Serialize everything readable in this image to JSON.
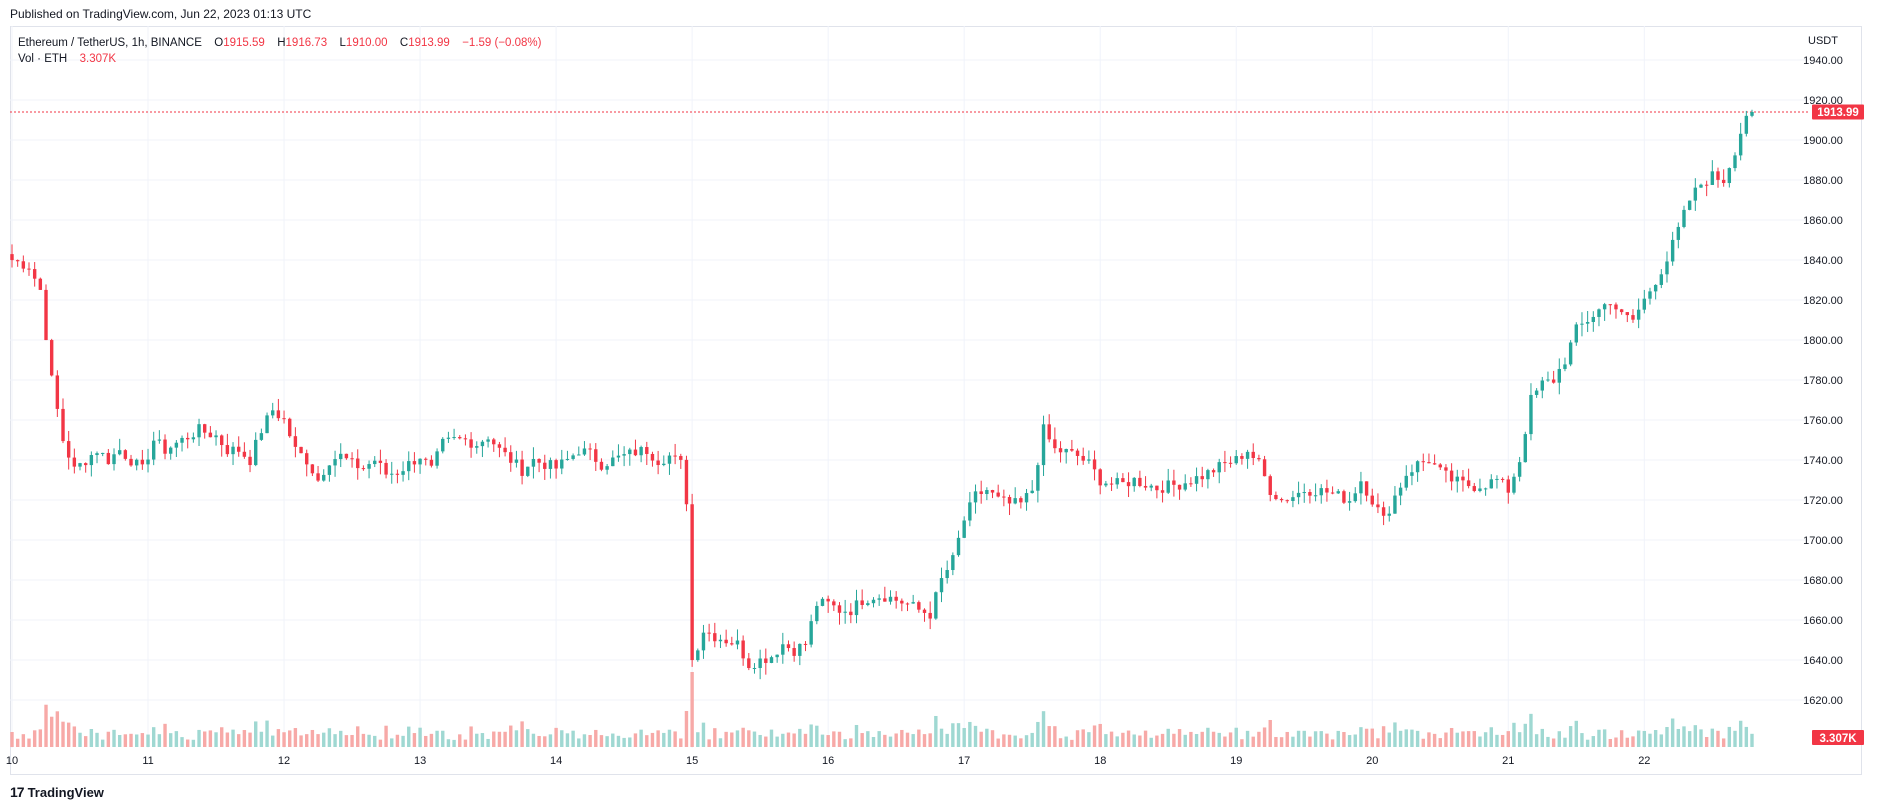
{
  "header": {
    "published": "Published on TradingView.com, Jun 22, 2023 01:13 UTC"
  },
  "legend": {
    "symbol": "Ethereum / TetherUS, 1h, BINANCE",
    "open_label": "O",
    "open": "1915.59",
    "high_label": "H",
    "high": "1916.73",
    "low_label": "L",
    "low": "1910.00",
    "close_label": "C",
    "close": "1913.99",
    "change": "−1.59 (−0.08%)",
    "volume_label": "Vol · ETH",
    "volume": "3.307K"
  },
  "axis": {
    "currency": "USDT",
    "last_price_tag": "1913.99",
    "volume_tag": "3.307K"
  },
  "colors": {
    "up": "#26a69a",
    "down": "#f23645",
    "up_vol": "#9fd8d2",
    "down_vol": "#f7a9a7",
    "grid": "#f0f3fa",
    "price_line": "#f23645"
  },
  "footer": {
    "logo_mark": "17",
    "logo_text": "TradingView"
  },
  "chart_data": {
    "type": "candlestick",
    "title": "Ethereum / TetherUS, 1h, BINANCE",
    "ylabel": "USDT",
    "ylim": [
      1620,
      1940
    ],
    "y_ticks": [
      "1940.00",
      "1920.00",
      "1900.00",
      "1880.00",
      "1860.00",
      "1840.00",
      "1820.00",
      "1800.00",
      "1780.00",
      "1760.00",
      "1740.00",
      "1720.00",
      "1700.00",
      "1680.00",
      "1660.00",
      "1640.00",
      "1620.00"
    ],
    "x_ticks": [
      "10",
      "11",
      "12",
      "13",
      "14",
      "15",
      "16",
      "17",
      "18",
      "19",
      "20",
      "21",
      "22"
    ],
    "close_path": [
      [
        0,
        1840
      ],
      [
        3,
        1837
      ],
      [
        5,
        1825
      ],
      [
        7,
        1780
      ],
      [
        9,
        1750
      ],
      [
        11,
        1735
      ],
      [
        13,
        1740
      ],
      [
        15,
        1745
      ],
      [
        17,
        1740
      ],
      [
        19,
        1745
      ],
      [
        21,
        1740
      ],
      [
        23,
        1735
      ],
      [
        25,
        1750
      ],
      [
        27,
        1745
      ],
      [
        30,
        1750
      ],
      [
        33,
        1755
      ],
      [
        36,
        1752
      ],
      [
        38,
        1745
      ],
      [
        40,
        1745
      ],
      [
        42,
        1740
      ],
      [
        44,
        1755
      ],
      [
        46,
        1765
      ],
      [
        48,
        1760
      ],
      [
        50,
        1745
      ],
      [
        52,
        1740
      ],
      [
        54,
        1730
      ],
      [
        56,
        1740
      ],
      [
        58,
        1742
      ],
      [
        60,
        1738
      ],
      [
        62,
        1736
      ],
      [
        64,
        1740
      ],
      [
        66,
        1733
      ],
      [
        68,
        1734
      ],
      [
        70,
        1738
      ],
      [
        72,
        1742
      ],
      [
        74,
        1735
      ],
      [
        76,
        1748
      ],
      [
        78,
        1750
      ],
      [
        80,
        1750
      ],
      [
        82,
        1748
      ],
      [
        84,
        1752
      ],
      [
        86,
        1745
      ],
      [
        88,
        1740
      ],
      [
        90,
        1735
      ],
      [
        92,
        1740
      ],
      [
        94,
        1738
      ],
      [
        96,
        1736
      ],
      [
        98,
        1740
      ],
      [
        100,
        1745
      ],
      [
        102,
        1743
      ],
      [
        104,
        1738
      ],
      [
        106,
        1740
      ],
      [
        108,
        1742
      ],
      [
        110,
        1744
      ],
      [
        112,
        1745
      ],
      [
        114,
        1740
      ],
      [
        116,
        1742
      ],
      [
        118,
        1738
      ],
      [
        119,
        1720
      ],
      [
        120,
        1640
      ],
      [
        122,
        1655
      ],
      [
        124,
        1652
      ],
      [
        126,
        1650
      ],
      [
        128,
        1648
      ],
      [
        130,
        1638
      ],
      [
        132,
        1640
      ],
      [
        134,
        1642
      ],
      [
        136,
        1648
      ],
      [
        138,
        1645
      ],
      [
        140,
        1648
      ],
      [
        142,
        1668
      ],
      [
        144,
        1668
      ],
      [
        146,
        1665
      ],
      [
        148,
        1665
      ],
      [
        150,
        1670
      ],
      [
        152,
        1672
      ],
      [
        154,
        1672
      ],
      [
        156,
        1670
      ],
      [
        158,
        1668
      ],
      [
        160,
        1665
      ],
      [
        162,
        1663
      ],
      [
        164,
        1680
      ],
      [
        166,
        1690
      ],
      [
        168,
        1710
      ],
      [
        170,
        1722
      ],
      [
        172,
        1725
      ],
      [
        174,
        1720
      ],
      [
        176,
        1718
      ],
      [
        178,
        1718
      ],
      [
        180,
        1725
      ],
      [
        182,
        1755
      ],
      [
        184,
        1745
      ],
      [
        186,
        1744
      ],
      [
        188,
        1742
      ],
      [
        190,
        1738
      ],
      [
        192,
        1730
      ],
      [
        194,
        1728
      ],
      [
        196,
        1728
      ],
      [
        198,
        1730
      ],
      [
        200,
        1728
      ],
      [
        202,
        1726
      ],
      [
        204,
        1727
      ],
      [
        206,
        1728
      ],
      [
        208,
        1730
      ],
      [
        210,
        1732
      ],
      [
        212,
        1735
      ],
      [
        214,
        1738
      ],
      [
        216,
        1740
      ],
      [
        218,
        1745
      ],
      [
        220,
        1738
      ],
      [
        222,
        1725
      ],
      [
        224,
        1720
      ],
      [
        226,
        1722
      ],
      [
        228,
        1725
      ],
      [
        230,
        1725
      ],
      [
        232,
        1724
      ],
      [
        234,
        1722
      ],
      [
        236,
        1720
      ],
      [
        238,
        1730
      ],
      [
        240,
        1720
      ],
      [
        242,
        1710
      ],
      [
        244,
        1722
      ],
      [
        246,
        1733
      ],
      [
        248,
        1738
      ],
      [
        250,
        1740
      ],
      [
        252,
        1734
      ],
      [
        254,
        1730
      ],
      [
        256,
        1728
      ],
      [
        258,
        1727
      ],
      [
        260,
        1728
      ],
      [
        262,
        1730
      ],
      [
        264,
        1725
      ],
      [
        266,
        1740
      ],
      [
        268,
        1770
      ],
      [
        270,
        1778
      ],
      [
        272,
        1780
      ],
      [
        274,
        1790
      ],
      [
        276,
        1805
      ],
      [
        278,
        1810
      ],
      [
        280,
        1815
      ],
      [
        282,
        1820
      ],
      [
        284,
        1812
      ],
      [
        286,
        1810
      ],
      [
        288,
        1820
      ],
      [
        290,
        1830
      ],
      [
        292,
        1840
      ],
      [
        294,
        1855
      ],
      [
        296,
        1870
      ],
      [
        298,
        1878
      ],
      [
        300,
        1882
      ],
      [
        302,
        1880
      ],
      [
        304,
        1895
      ],
      [
        306,
        1913
      ]
    ]
  }
}
